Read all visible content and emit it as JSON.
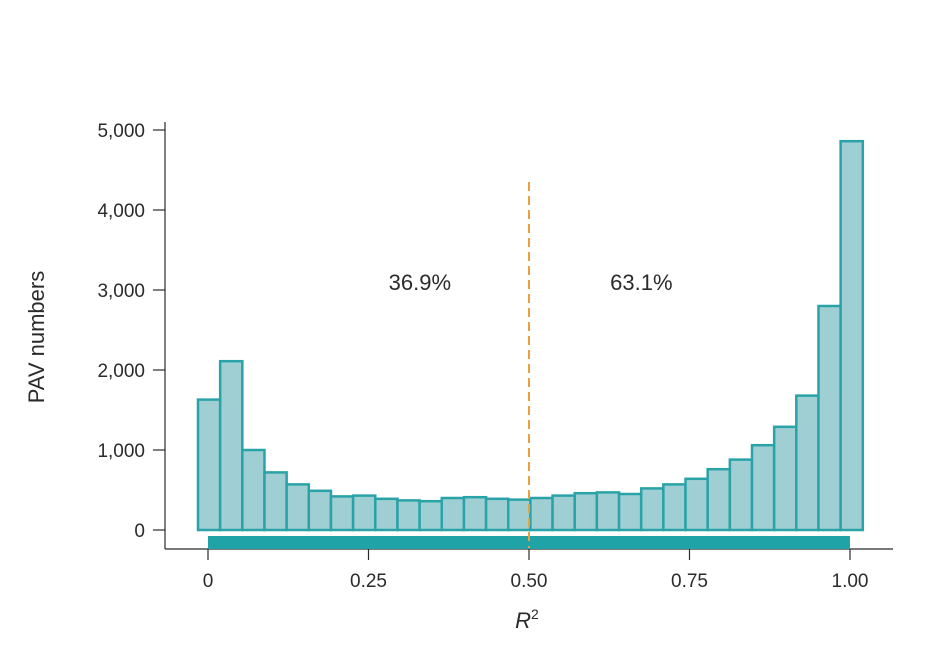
{
  "chart_data": {
    "type": "bar",
    "title": "",
    "xlabel": "R",
    "xlabel_superscript": "2",
    "ylabel": "PAV numbers",
    "xlim": [
      0,
      1
    ],
    "ylim": [
      0,
      5000
    ],
    "bin_width": 0.03448,
    "x_ticks": [
      {
        "value": 0,
        "label": "0"
      },
      {
        "value": 0.25,
        "label": "0.25"
      },
      {
        "value": 0.5,
        "label": "0.50"
      },
      {
        "value": 0.75,
        "label": "0.75"
      },
      {
        "value": 1.0,
        "label": "1.00"
      }
    ],
    "y_ticks": [
      {
        "value": 0,
        "label": "0"
      },
      {
        "value": 1000,
        "label": "1,000"
      },
      {
        "value": 2000,
        "label": "2,000"
      },
      {
        "value": 3000,
        "label": "3,000"
      },
      {
        "value": 4000,
        "label": "4,000"
      },
      {
        "value": 5000,
        "label": "5,000"
      }
    ],
    "values": [
      1630,
      2110,
      1000,
      720,
      570,
      490,
      420,
      430,
      390,
      370,
      360,
      400,
      410,
      390,
      380,
      400,
      430,
      460,
      470,
      450,
      520,
      570,
      640,
      760,
      880,
      1060,
      1290,
      1680,
      2800,
      4860
    ],
    "threshold": 0.5,
    "annotations": [
      {
        "text": "36.9%",
        "x": 0.33,
        "y": 3100
      },
      {
        "text": "63.1%",
        "x": 0.675,
        "y": 3100
      }
    ],
    "grid": false,
    "legend": "none"
  },
  "colors": {
    "bar_fill": "#9fcfd3",
    "bar_stroke": "#2aa3a8",
    "range_bar": "#1fa3a6",
    "threshold_line": "#e9a040",
    "axis": "#2b2b2b"
  }
}
